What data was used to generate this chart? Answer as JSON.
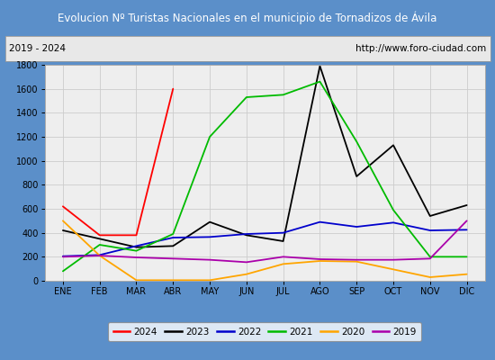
{
  "title": "Evolucion Nº Turistas Nacionales en el municipio de Tornadizos de Ávila",
  "subtitle_left": "2019 - 2024",
  "subtitle_right": "http://www.foro-ciudad.com",
  "months": [
    "ENE",
    "FEB",
    "MAR",
    "ABR",
    "MAY",
    "JUN",
    "JUL",
    "AGO",
    "SEP",
    "OCT",
    "NOV",
    "DIC"
  ],
  "series": {
    "2024": [
      620,
      380,
      380,
      1600,
      null,
      null,
      null,
      null,
      null,
      null,
      null,
      null
    ],
    "2023": [
      420,
      350,
      280,
      290,
      490,
      380,
      330,
      1790,
      870,
      1130,
      540,
      630
    ],
    "2022": [
      205,
      215,
      290,
      360,
      365,
      390,
      400,
      490,
      450,
      485,
      420,
      425
    ],
    "2021": [
      80,
      300,
      250,
      390,
      1200,
      1530,
      1550,
      1660,
      1160,
      590,
      200,
      200
    ],
    "2020": [
      500,
      210,
      5,
      5,
      5,
      55,
      140,
      165,
      160,
      95,
      30,
      55
    ],
    "2019": [
      200,
      210,
      195,
      185,
      175,
      155,
      200,
      180,
      175,
      175,
      185,
      500
    ]
  },
  "colors": {
    "2024": "#ff0000",
    "2023": "#000000",
    "2022": "#0000cc",
    "2021": "#00bb00",
    "2020": "#ffa500",
    "2019": "#aa00aa"
  },
  "ylim": [
    0,
    1800
  ],
  "yticks": [
    0,
    200,
    400,
    600,
    800,
    1000,
    1200,
    1400,
    1600,
    1800
  ],
  "title_bg_color": "#4a86c8",
  "title_text_color": "#ffffff",
  "plot_bg_color": "#eeeeee",
  "subtitle_bg_color": "#e8e8e8",
  "grid_color": "#cccccc",
  "outer_bg_color": "#5b8fc9"
}
